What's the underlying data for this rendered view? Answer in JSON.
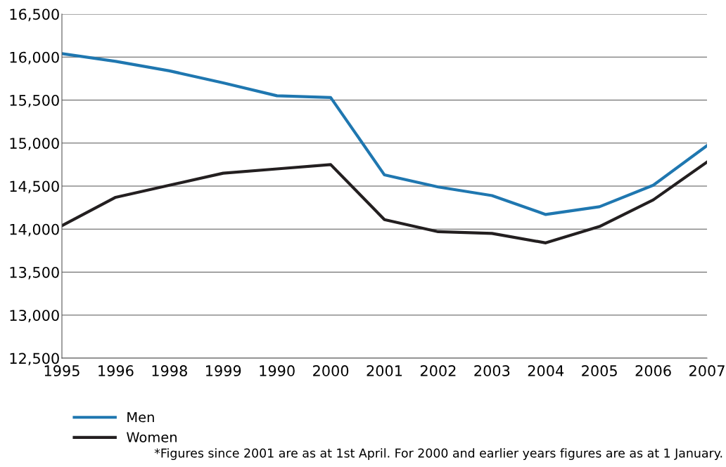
{
  "chart_data": {
    "type": "line",
    "categories": [
      "1995",
      "1996",
      "1998",
      "1999",
      "1990",
      "2000",
      "2001",
      "2002",
      "2003",
      "2004",
      "2005",
      "2006",
      "2007"
    ],
    "series": [
      {
        "name": "Men",
        "color": "#1f77b0",
        "values": [
          16040,
          15950,
          15840,
          15700,
          15550,
          15530,
          14630,
          14490,
          14390,
          14170,
          14260,
          14510,
          14970
        ]
      },
      {
        "name": "Women",
        "color": "#231f20",
        "values": [
          14040,
          14370,
          14510,
          14650,
          14700,
          14750,
          14110,
          13970,
          13950,
          13840,
          14030,
          14340,
          14780
        ]
      }
    ],
    "ylim": [
      12500,
      16500
    ],
    "yticks": [
      {
        "value": 12500,
        "label": "12,500"
      },
      {
        "value": 13000,
        "label": "13,000"
      },
      {
        "value": 13500,
        "label": "13,500"
      },
      {
        "value": 14000,
        "label": "14,000"
      },
      {
        "value": 14500,
        "label": "14,500"
      },
      {
        "value": 15000,
        "label": "15,000"
      },
      {
        "value": 15500,
        "label": "15,500"
      },
      {
        "value": 16000,
        "label": "16,000"
      },
      {
        "value": 16500,
        "label": "16,500"
      }
    ],
    "grid": "y",
    "legend": "bottom left",
    "line_style": "solid",
    "annotations": [
      "*Figures since 2001 are as at 1st April. For 2000 and earlier years figures are as at 1 January."
    ]
  }
}
